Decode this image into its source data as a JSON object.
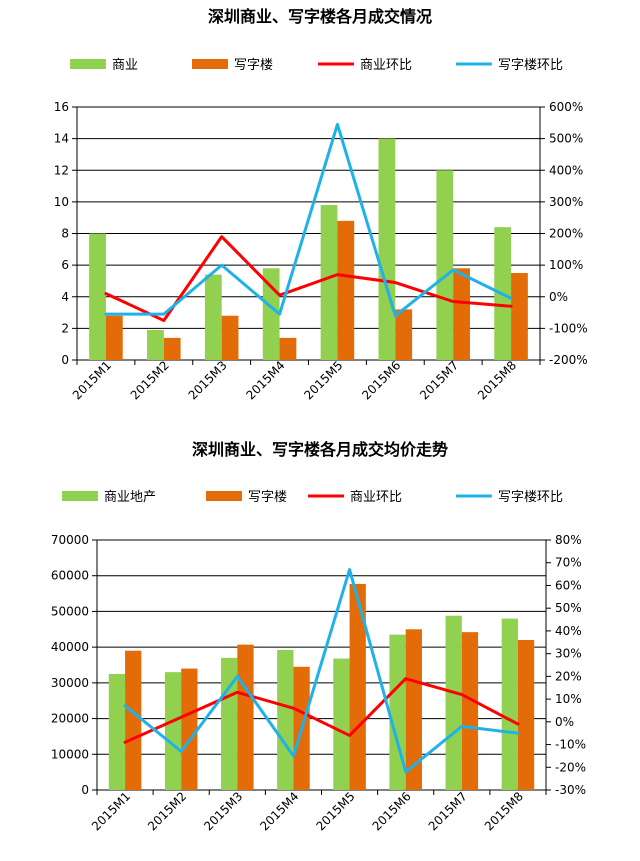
{
  "chart_data": [
    {
      "type": "bar",
      "title": "深圳商业、写字楼各月成交情况",
      "categories": [
        "2015M1",
        "2015M2",
        "2015M3",
        "2015M4",
        "2015M5",
        "2015M6",
        "2015M7",
        "2015M8"
      ],
      "series": [
        {
          "name": "商业",
          "kind": "bar",
          "axis": "left",
          "color": "#92d050",
          "values": [
            8.0,
            1.9,
            5.4,
            5.8,
            9.8,
            14.0,
            12.0,
            8.4
          ]
        },
        {
          "name": "写字楼",
          "kind": "bar",
          "axis": "left",
          "color": "#e36c09",
          "values": [
            2.8,
            1.4,
            2.8,
            1.4,
            8.8,
            3.2,
            5.8,
            5.5
          ]
        },
        {
          "name": "商业环比",
          "kind": "line",
          "axis": "right",
          "color": "#ff0000",
          "values": [
            10,
            -75,
            190,
            5,
            70,
            45,
            -15,
            -30
          ]
        },
        {
          "name": "写字楼环比",
          "kind": "line",
          "axis": "right",
          "color": "#1fb2e8",
          "values": [
            -55,
            -55,
            100,
            -55,
            545,
            -60,
            85,
            -5
          ]
        }
      ],
      "ylim": [
        0,
        16
      ],
      "yticks": [
        "0",
        "2",
        "4",
        "6",
        "8",
        "10",
        "12",
        "14",
        "16"
      ],
      "y2lim": [
        -200,
        600
      ],
      "y2ticks": [
        "-200%",
        "-100%",
        "0%",
        "100%",
        "200%",
        "300%",
        "400%",
        "500%",
        "600%"
      ],
      "legend_position": "top"
    },
    {
      "type": "bar",
      "title": "深圳商业、写字楼各月成交均价走势",
      "categories": [
        "2015M1",
        "2015M2",
        "2015M3",
        "2015M4",
        "2015M5",
        "2015M6",
        "2015M7",
        "2015M8"
      ],
      "series": [
        {
          "name": "商业地产",
          "kind": "bar",
          "axis": "left",
          "color": "#92d050",
          "values": [
            32500,
            33000,
            37000,
            39200,
            36800,
            43500,
            48800,
            48000
          ]
        },
        {
          "name": "写字楼",
          "kind": "bar",
          "axis": "left",
          "color": "#e36c09",
          "values": [
            39000,
            34000,
            40700,
            34500,
            57700,
            45000,
            44200,
            42000
          ]
        },
        {
          "name": "商业环比",
          "kind": "line",
          "axis": "right",
          "color": "#ff0000",
          "values": [
            -9,
            2,
            13,
            6,
            -6,
            19,
            12,
            -1
          ]
        },
        {
          "name": "写字楼环比",
          "kind": "line",
          "axis": "right",
          "color": "#1fb2e8",
          "values": [
            7,
            -13,
            20,
            -15,
            67,
            -22,
            -2,
            -5
          ]
        }
      ],
      "ylim": [
        0,
        70000
      ],
      "yticks": [
        "0",
        "10000",
        "20000",
        "30000",
        "40000",
        "50000",
        "60000",
        "70000"
      ],
      "y2lim": [
        -30,
        80
      ],
      "y2ticks": [
        "-30%",
        "-20%",
        "-10%",
        "0%",
        "10%",
        "20%",
        "30%",
        "40%",
        "50%",
        "60%",
        "70%",
        "80%"
      ],
      "legend_position": "top"
    }
  ]
}
